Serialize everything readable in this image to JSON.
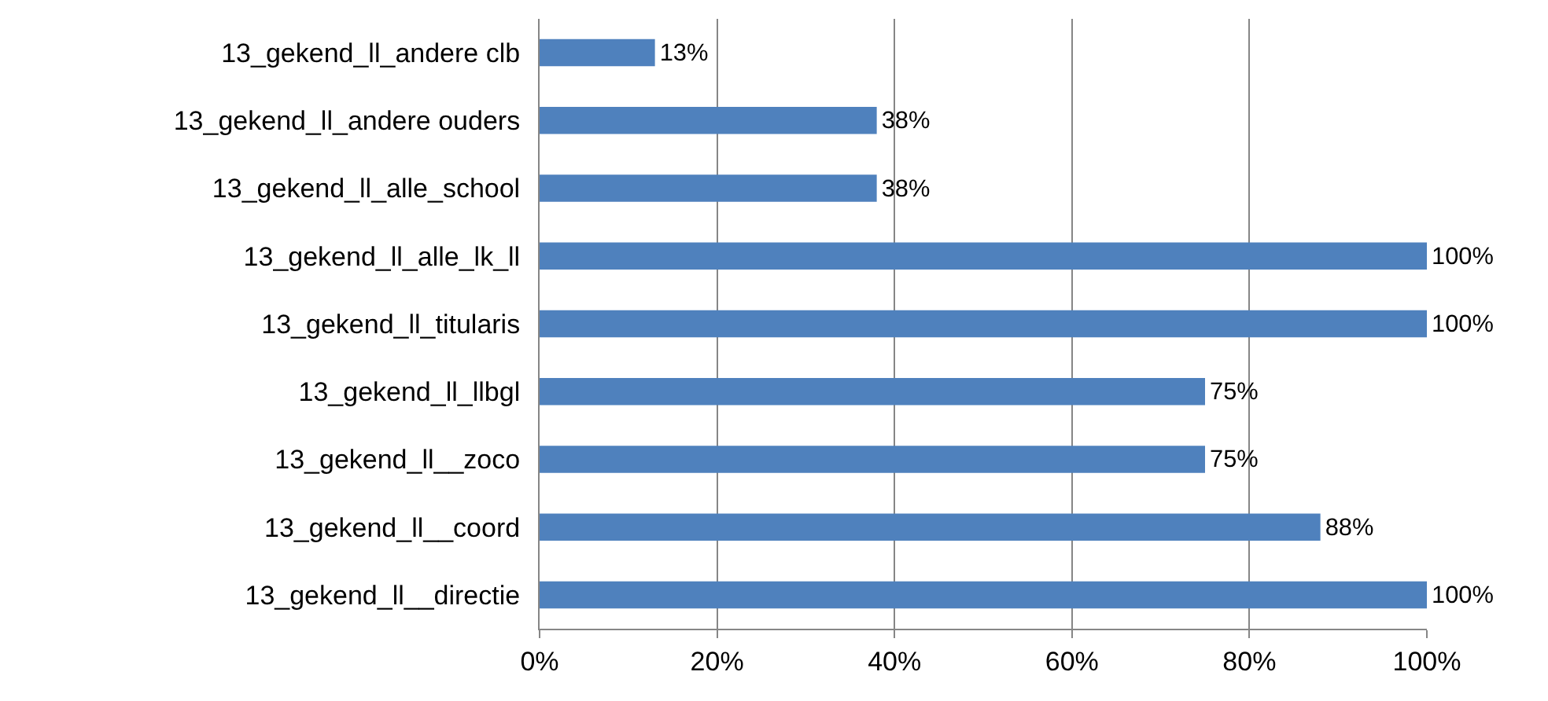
{
  "chart_data": {
    "type": "bar",
    "orientation": "horizontal",
    "categories": [
      "13_gekend_ll_andere clb",
      "13_gekend_ll_andere ouders",
      "13_gekend_ll_alle_school",
      "13_gekend_ll_alle_lk_ll",
      "13_gekend_ll_titularis",
      "13_gekend_ll_llbgl",
      "13_gekend_ll__zoco",
      "13_gekend_ll__coord",
      "13_gekend_ll__directie"
    ],
    "values": [
      13,
      38,
      38,
      100,
      100,
      75,
      75,
      88,
      100
    ],
    "value_labels": [
      "13%",
      "38%",
      "38%",
      "100%",
      "100%",
      "75%",
      "75%",
      "88%",
      "100%"
    ],
    "color": "#4f81bd",
    "xlim": [
      0,
      100
    ],
    "xticks": [
      {
        "value": 0,
        "label": "0%"
      },
      {
        "value": 20,
        "label": "20%"
      },
      {
        "value": 40,
        "label": "40%"
      },
      {
        "value": 60,
        "label": "60%"
      },
      {
        "value": 80,
        "label": "80%"
      },
      {
        "value": 100,
        "label": "100%"
      }
    ],
    "grid": "x",
    "legend": false
  }
}
